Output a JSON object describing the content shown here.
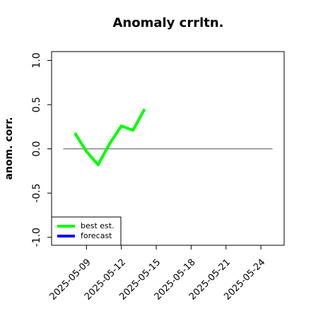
{
  "chart_data": {
    "type": "line",
    "title": "Anomaly crrltn.",
    "y_label": "anom. corr.",
    "x": [
      "2025-05-08",
      "2025-05-09",
      "2025-05-10",
      "2025-05-11",
      "2025-05-12",
      "2025-05-13",
      "2025-05-14"
    ],
    "series": [
      {
        "name": "best est.",
        "color": "#00ff00",
        "values": [
          0.18,
          -0.03,
          -0.18,
          0.06,
          0.26,
          0.21,
          0.45
        ]
      },
      {
        "name": "forecast",
        "color": "#0000ff",
        "values": [
          null,
          null,
          null,
          null,
          null,
          null,
          null
        ]
      }
    ],
    "xlim": [
      "2025-05-06",
      "2025-05-26"
    ],
    "xticks": [
      "2025-05-09",
      "2025-05-12",
      "2025-05-15",
      "2025-05-18",
      "2025-05-21",
      "2025-05-24"
    ],
    "highlight_xtick": "2025-05-15",
    "highlight_color": "#228b22",
    "ylim": [
      -1.09,
      1.1
    ],
    "yticks": [
      {
        "value": -1,
        "label": "-1.0"
      },
      {
        "value": -0.5,
        "label": "-0.5"
      },
      {
        "value": 0,
        "label": "0.0"
      },
      {
        "value": 0.5,
        "label": "0.5"
      },
      {
        "value": 1,
        "label": "1.0"
      }
    ],
    "hline": 0,
    "hline_x": [
      "2025-05-07",
      "2025-05-25"
    ],
    "legend": "bottom-left"
  }
}
